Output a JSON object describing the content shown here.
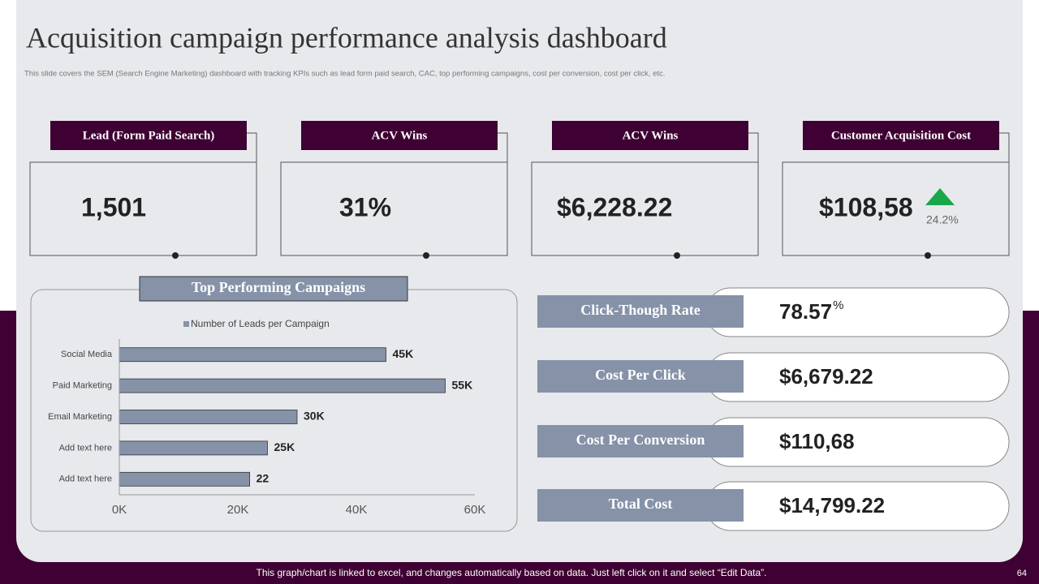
{
  "header": {
    "title": "Acquisition campaign performance analysis dashboard",
    "subtitle": "This slide covers the SEM  (Search Engine Marketing) dashboard with tracking KPIs such as lead  form paid search, CAC, top performing campaigns, cost per conversion, cost per click, etc."
  },
  "kpis": [
    {
      "label": "Lead (Form Paid Search)",
      "value": "1,501"
    },
    {
      "label": "ACV  Wins",
      "value": "31%"
    },
    {
      "label": "ACV Wins",
      "value": "$6,228.22"
    },
    {
      "label": "Customer Acquisition Cost",
      "value": "$108,58",
      "change": "24.2%"
    }
  ],
  "chart_data": {
    "type": "bar",
    "orientation": "horizontal",
    "title": "Top Performing Campaigns",
    "categories": [
      "Social Media",
      "Paid Marketing",
      "Email Marketing",
      "Add text here",
      "Add text here"
    ],
    "series": [
      {
        "name": "Number of Leads per Campaign",
        "color": "#8592a8",
        "values": [
          45,
          55,
          30,
          25,
          22
        ],
        "value_labels": [
          "45K",
          "55K",
          "30K",
          "25K",
          "22"
        ]
      }
    ],
    "xlim": [
      0,
      60
    ],
    "xticks": [
      {
        "value": 0,
        "label": "0K"
      },
      {
        "value": 20,
        "label": "20K"
      },
      {
        "value": 40,
        "label": "40K"
      },
      {
        "value": 60,
        "label": "60K"
      }
    ],
    "legend": "top",
    "grid": false
  },
  "metrics": [
    {
      "label": "Click-Though Rate",
      "value": "78.57",
      "unit": "%"
    },
    {
      "label": "Cost Per Click",
      "value": "$6,679.22"
    },
    {
      "label": "Cost Per Conversion",
      "value": "$110,68"
    },
    {
      "label": "Total Cost",
      "value": "$14,799.22"
    }
  ],
  "footer": {
    "note": "This graph/chart is linked to excel, and changes automatically based on data. Just left click on it and select “Edit Data”.",
    "page": "64"
  }
}
